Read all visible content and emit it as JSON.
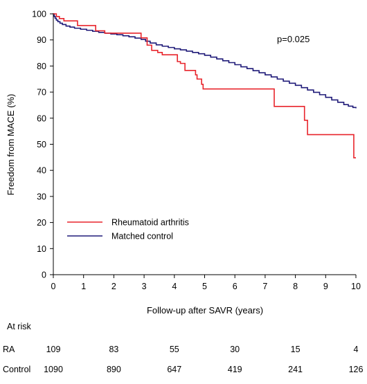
{
  "chart_data": {
    "type": "line",
    "title": "",
    "xlabel": "Follow-up after SAVR (years)",
    "ylabel": "Freedom from MACE (%)",
    "xlim": [
      0,
      10
    ],
    "ylim": [
      0,
      100
    ],
    "xticks": [
      0,
      1,
      2,
      3,
      4,
      5,
      6,
      7,
      8,
      9,
      10
    ],
    "yticks": [
      0,
      10,
      20,
      30,
      40,
      50,
      60,
      70,
      80,
      90,
      100
    ],
    "step": true,
    "grid": false,
    "legend_position": "bottom-left",
    "annotation": "p=0.025",
    "series": [
      {
        "name": "Rheumatoid arthritis",
        "color": "#e8242b",
        "points": [
          [
            0,
            100
          ],
          [
            0.1,
            99
          ],
          [
            0.2,
            98.2
          ],
          [
            0.35,
            97.3
          ],
          [
            0.8,
            95.5
          ],
          [
            1.4,
            93.5
          ],
          [
            1.7,
            92.6
          ],
          [
            2.9,
            90.8
          ],
          [
            3.1,
            88
          ],
          [
            3.25,
            86
          ],
          [
            3.45,
            85.2
          ],
          [
            3.6,
            84.3
          ],
          [
            4.1,
            81.7
          ],
          [
            4.2,
            81
          ],
          [
            4.35,
            78.3
          ],
          [
            4.7,
            76.6
          ],
          [
            4.75,
            75
          ],
          [
            4.9,
            73
          ],
          [
            4.95,
            71.2
          ],
          [
            7.25,
            71.2
          ],
          [
            7.3,
            64.5
          ],
          [
            8.3,
            59.2
          ],
          [
            8.4,
            53.7
          ],
          [
            9.9,
            53.7
          ],
          [
            9.93,
            44.8
          ],
          [
            10,
            44.8
          ]
        ]
      },
      {
        "name": "Matched control",
        "color": "#1f1a78",
        "points": [
          [
            0,
            100
          ],
          [
            0.03,
            99
          ],
          [
            0.06,
            98.3
          ],
          [
            0.1,
            97.6
          ],
          [
            0.15,
            97
          ],
          [
            0.22,
            96.4
          ],
          [
            0.3,
            95.9
          ],
          [
            0.42,
            95.3
          ],
          [
            0.55,
            94.9
          ],
          [
            0.7,
            94.5
          ],
          [
            0.9,
            94.1
          ],
          [
            1.1,
            93.7
          ],
          [
            1.3,
            93.3
          ],
          [
            1.5,
            92.9
          ],
          [
            1.7,
            92.6
          ],
          [
            1.9,
            92.3
          ],
          [
            2.1,
            92
          ],
          [
            2.3,
            91.6
          ],
          [
            2.5,
            91.2
          ],
          [
            2.7,
            90.7
          ],
          [
            2.9,
            90.2
          ],
          [
            3.05,
            89.5
          ],
          [
            3.2,
            88.8
          ],
          [
            3.4,
            88.1
          ],
          [
            3.6,
            87.6
          ],
          [
            3.8,
            87.1
          ],
          [
            4.0,
            86.6
          ],
          [
            4.2,
            86.2
          ],
          [
            4.4,
            85.7
          ],
          [
            4.6,
            85.2
          ],
          [
            4.8,
            84.7
          ],
          [
            5.0,
            84.1
          ],
          [
            5.2,
            83.4
          ],
          [
            5.4,
            82.7
          ],
          [
            5.6,
            82
          ],
          [
            5.8,
            81.3
          ],
          [
            6.0,
            80.5
          ],
          [
            6.2,
            79.7
          ],
          [
            6.4,
            79
          ],
          [
            6.6,
            78.2
          ],
          [
            6.8,
            77.4
          ],
          [
            7.0,
            76.6
          ],
          [
            7.2,
            75.8
          ],
          [
            7.4,
            75
          ],
          [
            7.6,
            74.2
          ],
          [
            7.8,
            73.4
          ],
          [
            8.0,
            72.6
          ],
          [
            8.2,
            71.7
          ],
          [
            8.4,
            70.8
          ],
          [
            8.6,
            69.9
          ],
          [
            8.8,
            69
          ],
          [
            9.0,
            68
          ],
          [
            9.2,
            67
          ],
          [
            9.4,
            66.1
          ],
          [
            9.6,
            65.2
          ],
          [
            9.75,
            64.6
          ],
          [
            9.9,
            64.1
          ],
          [
            10,
            63.8
          ]
        ]
      }
    ]
  },
  "at_risk": {
    "title": "At risk",
    "times": [
      0,
      2,
      4,
      6,
      8,
      10
    ],
    "rows": [
      {
        "label": "RA",
        "values": [
          "109",
          "83",
          "55",
          "30",
          "15",
          "4"
        ]
      },
      {
        "label": "Control",
        "values": [
          "1090",
          "890",
          "647",
          "419",
          "241",
          "126"
        ]
      }
    ]
  }
}
